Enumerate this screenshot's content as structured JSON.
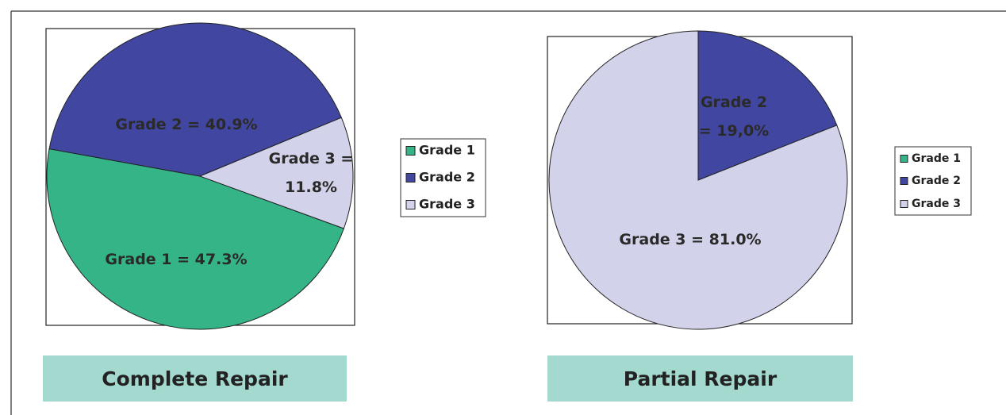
{
  "chart_data": [
    {
      "type": "pie",
      "title": "Complete Repair",
      "categories": [
        "Grade 1",
        "Grade 2",
        "Grade 3"
      ],
      "values": [
        47.3,
        40.9,
        11.8
      ],
      "value_labels": [
        "Grade 1 = 47.3%",
        "Grade 2 = 40.9%",
        "Grade 3 = 11.8%"
      ],
      "colors": [
        "#35b487",
        "#4146a0",
        "#d2d2ea"
      ],
      "legend": "right"
    },
    {
      "type": "pie",
      "title": "Partial Repair",
      "categories": [
        "Grade 1",
        "Grade 2",
        "Grade 3"
      ],
      "values": [
        0,
        19.0,
        81.0
      ],
      "value_labels": [
        null,
        "Grade 2 = 19,0%",
        "Grade 3 = 81.0%"
      ],
      "colors": [
        "#35b487",
        "#4146a0",
        "#d2d2ea"
      ],
      "legend": "right"
    }
  ]
}
